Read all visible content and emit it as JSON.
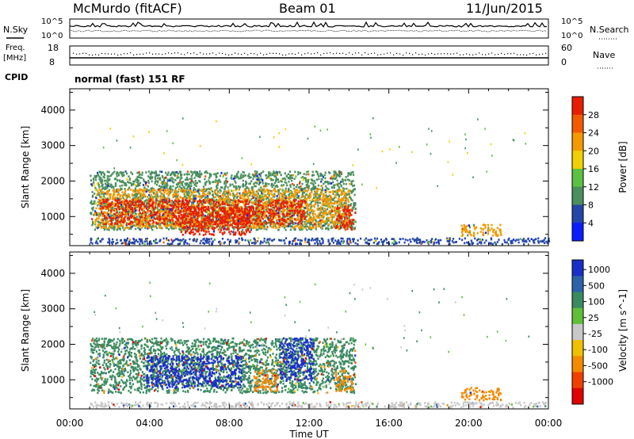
{
  "header": {
    "station": "McMurdo (fitACF)",
    "beam": "Beam 01",
    "date": "11/Jun/2015",
    "mode": "normal (fast) 151 RF"
  },
  "strip_labels": {
    "nsky": "N.Sky",
    "freq_line1": "Freq.",
    "freq_line2": "[MHz]",
    "cpid": "CPID",
    "nsearch": "N.Search",
    "nave": "Nave"
  },
  "strip_ticks": {
    "noise_left_top": "10^5",
    "noise_left_bottom": "10^0",
    "noise_right_top": "10^5",
    "noise_right_bottom": "10^0",
    "freq_top": "18",
    "freq_bottom": "8",
    "nave_top": "60",
    "nave_bottom": "0"
  },
  "chart_data": [
    {
      "type": "heatmap",
      "panel": "power",
      "xlabel": "",
      "ylabel": "Slant Range [km]",
      "x_ticks": [
        "00:00",
        "04:00",
        "08:00",
        "12:00",
        "16:00",
        "20:00",
        "00:00"
      ],
      "x_range_hours": [
        0,
        24
      ],
      "y_ticks": [
        1000,
        2000,
        3000,
        4000
      ],
      "ylim": [
        180,
        4600
      ],
      "colorbar": {
        "label": "Power [dB]",
        "ticks": [
          "4",
          "8",
          "12",
          "16",
          "20",
          "24",
          "28"
        ],
        "colors": [
          "#0a1eff",
          "#2446a8",
          "#4a8f5e",
          "#5cc040",
          "#f0d000",
          "#f39a00",
          "#f35a00",
          "#e81e00"
        ],
        "range": [
          0,
          32
        ]
      },
      "regions": [
        {
          "x0": 1.0,
          "x1": 14.3,
          "y0": 650,
          "y1": 2300,
          "level": "green-edge"
        },
        {
          "x0": 1.2,
          "x1": 14.0,
          "y0": 700,
          "y1": 1800,
          "level": "orange"
        },
        {
          "x0": 1.5,
          "x1": 11.8,
          "y0": 800,
          "y1": 1500,
          "level": "red"
        },
        {
          "x0": 5.5,
          "x1": 9.0,
          "y0": 500,
          "y1": 1300,
          "level": "red"
        },
        {
          "x0": 13.3,
          "x1": 14.2,
          "y0": 650,
          "y1": 1300,
          "level": "red"
        },
        {
          "x0": 19.6,
          "x1": 21.6,
          "y0": 450,
          "y1": 800,
          "level": "orange"
        },
        {
          "x0": 1.0,
          "x1": 24.0,
          "y0": 250,
          "y1": 420,
          "level": "blue"
        }
      ]
    },
    {
      "type": "heatmap",
      "panel": "velocity",
      "xlabel": "Time UT",
      "ylabel": "Slant Range [km]",
      "x_ticks": [
        "00:00",
        "04:00",
        "08:00",
        "12:00",
        "16:00",
        "20:00",
        "00:00"
      ],
      "x_range_hours": [
        0,
        24
      ],
      "y_ticks": [
        1000,
        2000,
        3000,
        4000
      ],
      "ylim": [
        180,
        4600
      ],
      "colorbar": {
        "label": "Velocity [m s^-1]",
        "ticks": [
          "1000",
          "500",
          "100",
          "25",
          "-25",
          "-100",
          "-500",
          "-1000"
        ],
        "colors": [
          "#1a2fc8",
          "#2c62a8",
          "#3a8a60",
          "#5fbf3a",
          "#c8c8c8",
          "#f0c000",
          "#f38a00",
          "#f04000",
          "#e00000"
        ],
        "range": [
          -1200,
          1200
        ]
      },
      "regions": [
        {
          "x0": 1.0,
          "x1": 14.3,
          "y0": 650,
          "y1": 2200,
          "level": "green"
        },
        {
          "x0": 3.8,
          "x1": 8.6,
          "y0": 800,
          "y1": 1700,
          "level": "blue"
        },
        {
          "x0": 10.5,
          "x1": 12.2,
          "y0": 1000,
          "y1": 2200,
          "level": "blue"
        },
        {
          "x0": 9.2,
          "x1": 10.4,
          "y0": 700,
          "y1": 1300,
          "level": "orange"
        },
        {
          "x0": 13.3,
          "x1": 14.2,
          "y0": 700,
          "y1": 1300,
          "level": "orange"
        },
        {
          "x0": 19.6,
          "x1": 21.6,
          "y0": 450,
          "y1": 800,
          "level": "orange"
        },
        {
          "x0": 1.0,
          "x1": 24.0,
          "y0": 250,
          "y1": 400,
          "level": "grey"
        }
      ]
    }
  ]
}
